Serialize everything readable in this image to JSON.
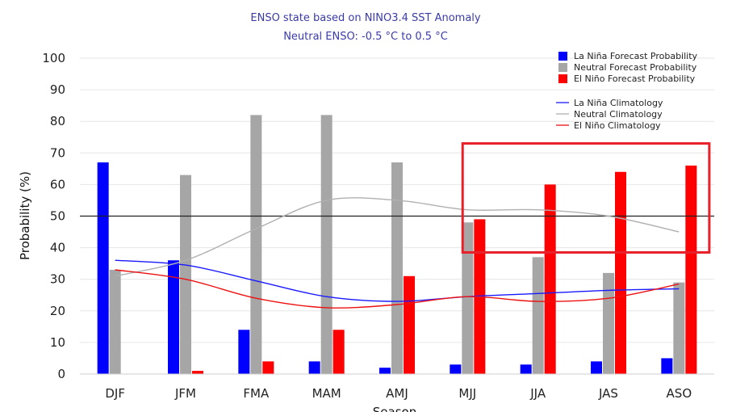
{
  "chart_data": {
    "type": "bar",
    "title": "ENSO state based on NINO3.4 SST Anomaly",
    "subtitle": "Neutral ENSO: -0.5 °C to 0.5 °C",
    "xlabel": "Season",
    "ylabel": "Probability (%)",
    "ylim": [
      0,
      100
    ],
    "yticks": [
      0,
      10,
      20,
      30,
      40,
      50,
      60,
      70,
      80,
      90,
      100
    ],
    "reference_line": 50,
    "categories": [
      "DJF",
      "JFM",
      "FMA",
      "MAM",
      "AMJ",
      "MJJ",
      "JJA",
      "JAS",
      "ASO"
    ],
    "series": [
      {
        "name": "La Niña Forecast Probability",
        "color": "#0000ff",
        "values": [
          67,
          36,
          14,
          4,
          2,
          3,
          3,
          4,
          5
        ]
      },
      {
        "name": "Neutral Forecast Probability",
        "color": "#a6a6a6",
        "values": [
          33,
          63,
          82,
          82,
          67,
          48,
          37,
          32,
          29
        ]
      },
      {
        "name": "El Niño Forecast Probability",
        "color": "#ff0000",
        "values": [
          0,
          1,
          4,
          14,
          31,
          49,
          60,
          64,
          66
        ]
      }
    ],
    "lines": [
      {
        "name": "La Niña Climatology",
        "color": "#1a1aff",
        "values": [
          36,
          34.5,
          29.5,
          24.5,
          23,
          24.5,
          25.5,
          26.5,
          27
        ]
      },
      {
        "name": "Neutral Climatology",
        "color": "#b0b0b0",
        "values": [
          31,
          36,
          46,
          55,
          55,
          52,
          52,
          50,
          45
        ]
      },
      {
        "name": "El Niño Climatology",
        "color": "#ee1111",
        "values": [
          33,
          30,
          24,
          21,
          22,
          24.5,
          23,
          24,
          28.5
        ]
      }
    ],
    "annotation": {
      "type": "highlight-box",
      "color": "#e8202a",
      "covers": [
        "JJA",
        "JAS",
        "ASO"
      ],
      "y_range": [
        38.5,
        73
      ]
    }
  }
}
